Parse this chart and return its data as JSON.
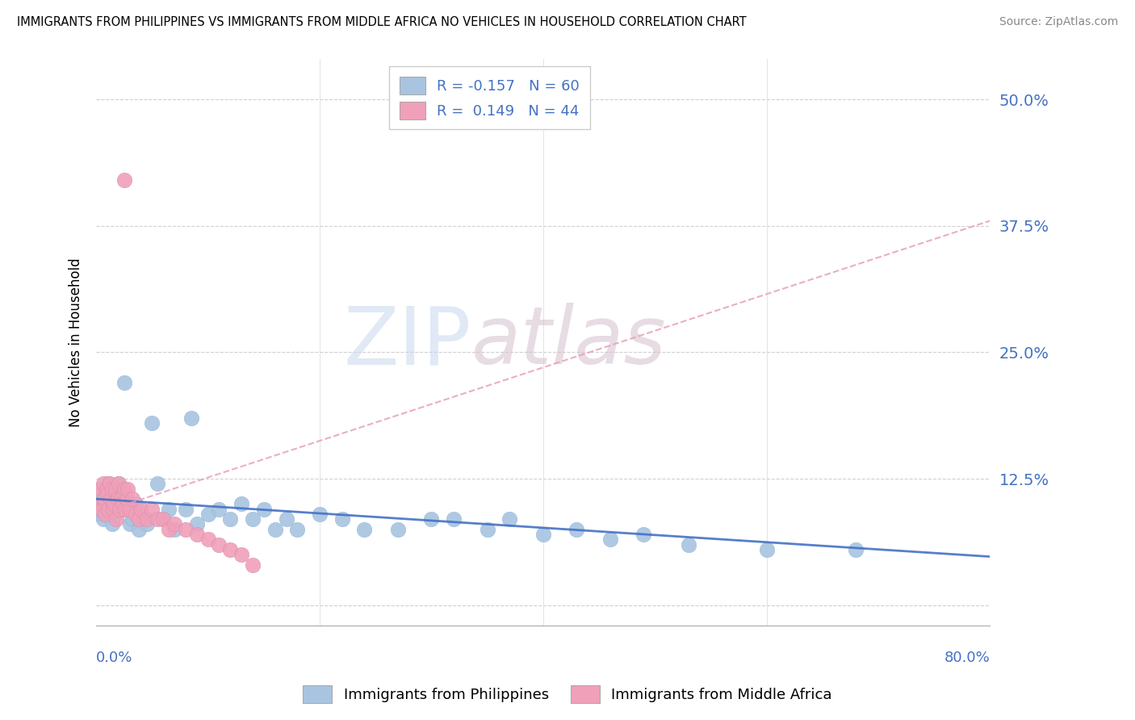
{
  "title": "IMMIGRANTS FROM PHILIPPINES VS IMMIGRANTS FROM MIDDLE AFRICA NO VEHICLES IN HOUSEHOLD CORRELATION CHART",
  "source": "Source: ZipAtlas.com",
  "ylabel": "No Vehicles in Household",
  "ytick_vals": [
    0.0,
    0.125,
    0.25,
    0.375,
    0.5
  ],
  "ytick_labels": [
    "",
    "12.5%",
    "25.0%",
    "37.5%",
    "50.0%"
  ],
  "xlim": [
    0.0,
    0.8
  ],
  "ylim": [
    -0.02,
    0.54
  ],
  "color_blue": "#a8c4e0",
  "color_pink": "#f0a0b8",
  "color_blue_line": "#4472c4",
  "color_pink_line": "#e8a0b8",
  "color_text_blue": "#4472c4",
  "watermark_text": "ZIPatlas",
  "legend1_label": "R = -0.157   N = 60",
  "legend2_label": "R =  0.149   N = 44",
  "bottom_legend1": "Immigrants from Philippines",
  "bottom_legend2": "Immigrants from Middle Africa",
  "phil_trend_x0": 0.0,
  "phil_trend_y0": 0.105,
  "phil_trend_x1": 0.8,
  "phil_trend_y1": 0.048,
  "africa_trend_x0": 0.0,
  "africa_trend_y0": 0.09,
  "africa_trend_x1": 0.8,
  "africa_trend_y1": 0.38,
  "philippines_x": [
    0.002,
    0.003,
    0.004,
    0.005,
    0.006,
    0.007,
    0.008,
    0.009,
    0.01,
    0.011,
    0.012,
    0.013,
    0.014,
    0.015,
    0.016,
    0.017,
    0.018,
    0.02,
    0.022,
    0.024,
    0.025,
    0.027,
    0.03,
    0.032,
    0.035,
    0.038,
    0.04,
    0.045,
    0.05,
    0.055,
    0.06,
    0.065,
    0.07,
    0.08,
    0.085,
    0.09,
    0.1,
    0.11,
    0.12,
    0.13,
    0.14,
    0.15,
    0.16,
    0.17,
    0.18,
    0.2,
    0.22,
    0.24,
    0.27,
    0.3,
    0.32,
    0.35,
    0.37,
    0.4,
    0.43,
    0.46,
    0.49,
    0.53,
    0.6,
    0.68
  ],
  "philippines_y": [
    0.1,
    0.09,
    0.11,
    0.095,
    0.085,
    0.105,
    0.115,
    0.1,
    0.09,
    0.12,
    0.095,
    0.105,
    0.08,
    0.11,
    0.115,
    0.09,
    0.095,
    0.12,
    0.105,
    0.095,
    0.22,
    0.1,
    0.08,
    0.085,
    0.1,
    0.075,
    0.09,
    0.08,
    0.18,
    0.12,
    0.085,
    0.095,
    0.075,
    0.095,
    0.185,
    0.08,
    0.09,
    0.095,
    0.085,
    0.1,
    0.085,
    0.095,
    0.075,
    0.085,
    0.075,
    0.09,
    0.085,
    0.075,
    0.075,
    0.085,
    0.085,
    0.075,
    0.085,
    0.07,
    0.075,
    0.065,
    0.07,
    0.06,
    0.055,
    0.055
  ],
  "middle_africa_x": [
    0.003,
    0.004,
    0.005,
    0.006,
    0.007,
    0.008,
    0.009,
    0.01,
    0.011,
    0.012,
    0.013,
    0.014,
    0.015,
    0.016,
    0.017,
    0.018,
    0.019,
    0.02,
    0.021,
    0.022,
    0.024,
    0.025,
    0.026,
    0.027,
    0.028,
    0.03,
    0.032,
    0.035,
    0.038,
    0.04,
    0.045,
    0.05,
    0.055,
    0.06,
    0.065,
    0.07,
    0.08,
    0.09,
    0.1,
    0.11,
    0.12,
    0.13,
    0.14,
    0.025
  ],
  "middle_africa_y": [
    0.1,
    0.115,
    0.095,
    0.12,
    0.105,
    0.09,
    0.115,
    0.11,
    0.095,
    0.12,
    0.105,
    0.115,
    0.095,
    0.1,
    0.115,
    0.085,
    0.105,
    0.12,
    0.095,
    0.105,
    0.1,
    0.115,
    0.095,
    0.105,
    0.115,
    0.095,
    0.105,
    0.09,
    0.085,
    0.095,
    0.085,
    0.095,
    0.085,
    0.085,
    0.075,
    0.08,
    0.075,
    0.07,
    0.065,
    0.06,
    0.055,
    0.05,
    0.04,
    0.42
  ]
}
